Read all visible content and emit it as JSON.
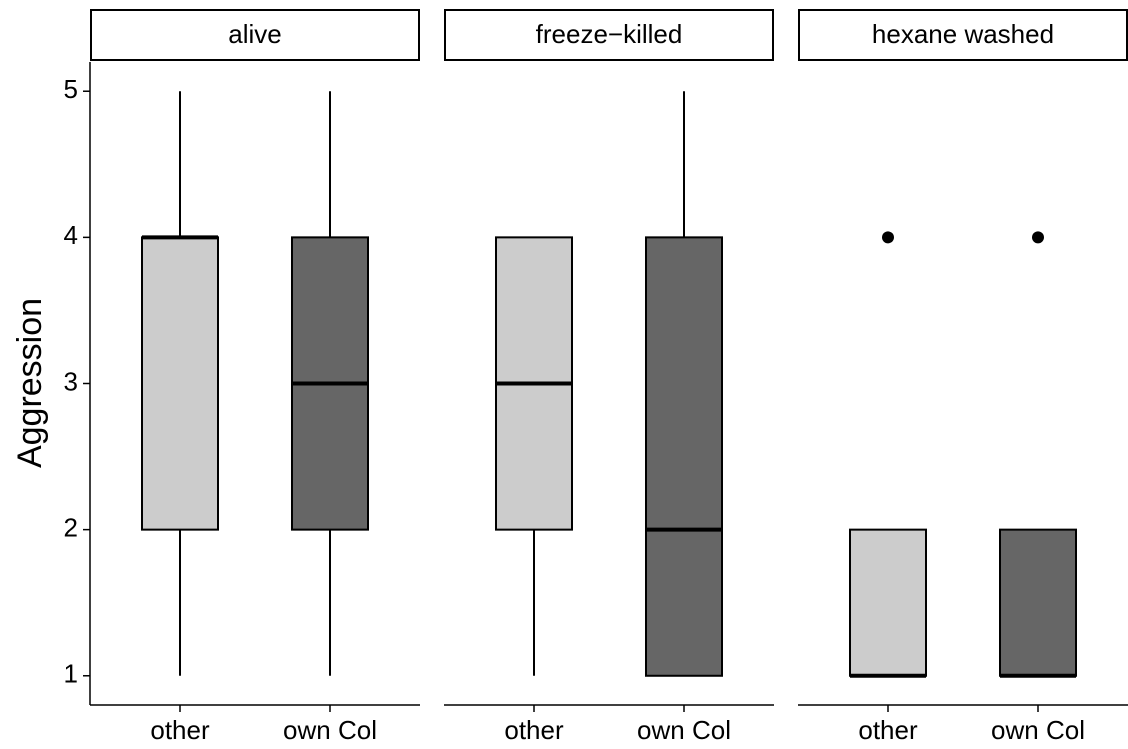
{
  "chart_data": {
    "type": "box",
    "ylabel": "Aggression",
    "ylim": [
      0.8,
      5.2
    ],
    "yticks": [
      1,
      2,
      3,
      4,
      5
    ],
    "colors": [
      "#cccccc",
      "#666666"
    ],
    "facets": [
      {
        "title": "alive",
        "categories": [
          "other",
          "own Col"
        ],
        "boxes": [
          {
            "min": 1,
            "q1": 2,
            "median": 4,
            "q3": 4,
            "max": 5,
            "outliers": []
          },
          {
            "min": 1,
            "q1": 2,
            "median": 3,
            "q3": 4,
            "max": 5,
            "outliers": []
          }
        ]
      },
      {
        "title": "freeze−killed",
        "categories": [
          "other",
          "own Col"
        ],
        "boxes": [
          {
            "min": 1,
            "q1": 2,
            "median": 3,
            "q3": 4,
            "max": 4,
            "outliers": []
          },
          {
            "min": 1,
            "q1": 1,
            "median": 2,
            "q3": 4,
            "max": 5,
            "outliers": []
          }
        ]
      },
      {
        "title": "hexane washed",
        "categories": [
          "other",
          "own Col"
        ],
        "boxes": [
          {
            "min": 1,
            "q1": 1,
            "median": 1,
            "q3": 2,
            "max": 2,
            "outliers": [
              4
            ]
          },
          {
            "min": 1,
            "q1": 1,
            "median": 1,
            "q3": 2,
            "max": 2,
            "outliers": [
              4
            ]
          }
        ]
      }
    ]
  }
}
